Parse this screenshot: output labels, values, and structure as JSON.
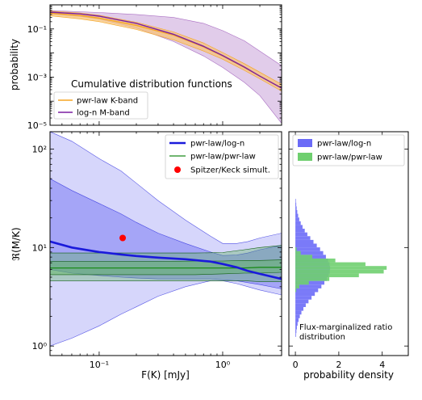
{
  "chart_data": [
    {
      "type": "line",
      "panel": "top",
      "xscale": "log",
      "yscale": "log",
      "xlim": [
        0.04,
        3.0
      ],
      "ylim": [
        1e-05,
        1
      ],
      "ylabel": "probability",
      "yticks": [
        {
          "value": 0.1,
          "label": "10⁻¹"
        },
        {
          "value": 0.001,
          "label": "10⁻³"
        },
        {
          "value": 1e-05,
          "label": "10⁻⁵"
        }
      ],
      "legend": {
        "title": "Cumulative distribution functions",
        "placement": "lower-left"
      },
      "colors": {
        "pwr": "#f5a623",
        "logn": "#7b1fa2",
        "logn_band": "#c9a3d9",
        "pwr_band": "#f7c37a"
      },
      "series": [
        {
          "name": "pwr-law K-band",
          "key": "pwr",
          "x": [
            0.04,
            0.07,
            0.1,
            0.2,
            0.4,
            0.7,
            1.0,
            1.5,
            2.0,
            3.0
          ],
          "y": [
            0.45,
            0.36,
            0.28,
            0.14,
            0.055,
            0.018,
            0.0075,
            0.0025,
            0.0011,
            0.00035
          ],
          "lo": [
            0.35,
            0.26,
            0.2,
            0.095,
            0.035,
            0.012,
            0.0055,
            0.0019,
            0.00085,
            0.00026
          ],
          "hi": [
            0.55,
            0.46,
            0.37,
            0.19,
            0.075,
            0.026,
            0.0105,
            0.0036,
            0.0016,
            0.0005
          ]
        },
        {
          "name": "log-n M-band",
          "key": "logn",
          "x": [
            0.04,
            0.07,
            0.1,
            0.2,
            0.4,
            0.7,
            1.0,
            1.5,
            2.0,
            3.0
          ],
          "y": [
            0.5,
            0.42,
            0.34,
            0.17,
            0.06,
            0.019,
            0.0078,
            0.0026,
            0.0011,
            0.00035
          ],
          "lo": [
            0.42,
            0.33,
            0.26,
            0.11,
            0.03,
            0.0075,
            0.0025,
            0.0006,
            0.00017,
            1.2e-05
          ],
          "hi": [
            0.58,
            0.52,
            0.48,
            0.4,
            0.3,
            0.17,
            0.085,
            0.032,
            0.012,
            0.003
          ]
        }
      ]
    },
    {
      "type": "line",
      "panel": "main",
      "xscale": "log",
      "yscale": "log",
      "xlim": [
        0.04,
        3.0
      ],
      "ylim": [
        0.8,
        150
      ],
      "xlabel": "F(K) [mJy]",
      "ylabel": "ℜ(M/K)",
      "xticks": [
        {
          "value": 0.1,
          "label": "10⁻¹"
        },
        {
          "value": 1,
          "label": "10⁰"
        }
      ],
      "yticks": [
        {
          "value": 1,
          "label": "10⁰"
        },
        {
          "value": 10,
          "label": "10¹"
        },
        {
          "value": 100,
          "label": "10²"
        }
      ],
      "legend": {
        "placement": "upper-right"
      },
      "colors": {
        "logn": "#1a1adb",
        "pwr": "#1a8a1a",
        "point": "#ff0000",
        "logn_band": "#6b6bf2",
        "pwr_band": "#5ab35a"
      },
      "series": [
        {
          "name": "pwr-law/log-n",
          "key": "logn",
          "x": [
            0.04,
            0.06,
            0.1,
            0.15,
            0.2,
            0.3,
            0.5,
            0.8,
            1.0,
            1.3,
            1.6,
            2.0,
            3.0
          ],
          "y": [
            11.5,
            10.0,
            9.0,
            8.5,
            8.2,
            7.9,
            7.6,
            7.2,
            6.8,
            6.3,
            5.8,
            5.4,
            4.8
          ],
          "lo1": [
            6.0,
            5.5,
            5.2,
            5.0,
            4.9,
            4.8,
            4.8,
            4.8,
            4.7,
            4.6,
            4.4,
            4.2,
            3.8
          ],
          "hi1": [
            50,
            38,
            28,
            22,
            18,
            14,
            11,
            9.0,
            8.3,
            8.4,
            8.8,
            9.5,
            10.5
          ],
          "lo2": [
            1.0,
            1.2,
            1.6,
            2.1,
            2.5,
            3.2,
            4.0,
            4.6,
            4.6,
            4.3,
            4.0,
            3.7,
            3.3
          ],
          "hi2": [
            150,
            120,
            80,
            60,
            45,
            30,
            19,
            13,
            11,
            11,
            11.5,
            12.5,
            14
          ]
        },
        {
          "name": "pwr-law/pwr-law",
          "key": "pwr",
          "x": [
            0.04,
            0.1,
            0.3,
            0.6,
            1.0,
            1.5,
            2.0,
            3.0
          ],
          "y": [
            6.2,
            6.2,
            6.2,
            6.2,
            6.2,
            6.2,
            6.3,
            6.3
          ],
          "lo1": [
            5.3,
            5.3,
            5.3,
            5.3,
            5.4,
            5.5,
            5.5,
            5.6
          ],
          "hi1": [
            7.2,
            7.2,
            7.2,
            7.3,
            7.3,
            7.4,
            7.4,
            7.5
          ],
          "lo2": [
            4.6,
            4.6,
            4.6,
            4.6,
            4.6,
            4.6,
            4.5,
            4.5
          ],
          "hi2": [
            8.8,
            8.8,
            8.8,
            8.8,
            8.9,
            9.5,
            10,
            10.5
          ]
        },
        {
          "name": "Spitzer/Keck simult.",
          "key": "point",
          "x": [
            0.155
          ],
          "y": [
            12.5
          ]
        }
      ]
    },
    {
      "type": "bar",
      "panel": "right",
      "orientation": "horizontal",
      "yscale": "log",
      "ylim": [
        0.8,
        150
      ],
      "xlim": [
        -0.3,
        5.2
      ],
      "xlabel": "probability density",
      "xticks": [
        0,
        2,
        4
      ],
      "annotation": "Flux-marginalized ratio distribution",
      "legend": {
        "placement": "upper-left"
      },
      "colors": {
        "logn": "#6b6bf7",
        "pwr": "#6fcf6f"
      },
      "series": [
        {
          "name": "pwr-law/log-n",
          "key": "logn",
          "mode": "1.85",
          "sigma": 0.55,
          "peak": 1.6
        },
        {
          "name": "pwr-law/pwr-law",
          "key": "pwr",
          "mode": "1.82",
          "sigma": 0.16,
          "peak": 4.3
        }
      ]
    }
  ]
}
